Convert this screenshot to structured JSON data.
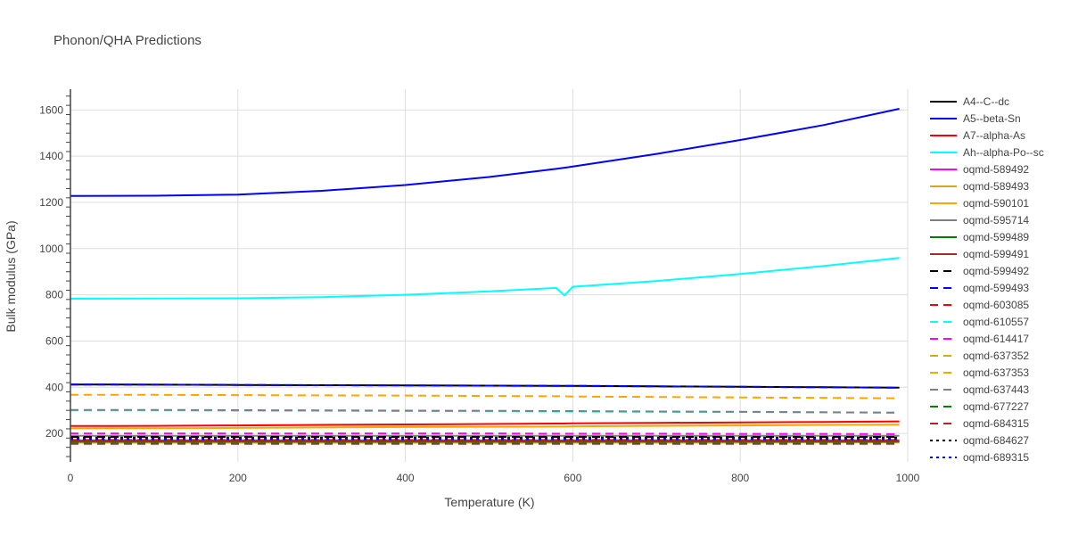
{
  "chart_data": {
    "type": "line",
    "title": "Phonon/QHA Predictions",
    "xlabel": "Temperature (K)",
    "ylabel": "Bulk modulus (GPa)",
    "xlim": [
      0,
      1000
    ],
    "ylim": [
      77,
      1690
    ],
    "xticks": [
      0,
      200,
      400,
      600,
      800,
      1000
    ],
    "yticks": [
      200,
      400,
      600,
      800,
      1000,
      1200,
      1400,
      1600
    ],
    "grid": true,
    "legend_position": "right",
    "x": [
      0,
      100,
      200,
      300,
      400,
      500,
      580,
      590,
      600,
      700,
      800,
      900,
      990
    ],
    "series": [
      {
        "name": "A4--C--dc",
        "color": "#000000",
        "dash": "solid",
        "values": [
          412,
          411,
          410,
          409,
          408,
          407,
          406,
          406,
          406,
          404,
          402,
          400,
          398
        ]
      },
      {
        "name": "A5--beta-Sn",
        "color": "#0000ff",
        "dash": "solid",
        "values": [
          1228,
          1229,
          1234,
          1250,
          1275,
          1310,
          1345,
          1350,
          1355,
          1410,
          1470,
          1535,
          1605
        ]
      },
      {
        "name": "A7--alpha-As",
        "color": "#ff0000",
        "dash": "solid",
        "values": [
          232,
          233,
          235,
          237,
          239,
          241,
          243,
          243,
          244,
          246,
          248,
          250,
          252
        ]
      },
      {
        "name": "Ah--alpha-Po--sc",
        "color": "#00ffff",
        "dash": "solid",
        "values": [
          783,
          784,
          785,
          790,
          800,
          815,
          830,
          798,
          835,
          860,
          890,
          925,
          960
        ]
      },
      {
        "name": "oqmd-589492",
        "color": "#ff00ff",
        "dash": "solid",
        "values": [
          170,
          170,
          170,
          170,
          170,
          170,
          170,
          170,
          170,
          170,
          170,
          170,
          170
        ]
      },
      {
        "name": "oqmd-589493",
        "color": "#daa520",
        "dash": "solid",
        "values": [
          160,
          160,
          160,
          160,
          160,
          160,
          160,
          160,
          160,
          160,
          160,
          161,
          161
        ]
      },
      {
        "name": "oqmd-590101",
        "color": "#ffa500",
        "dash": "solid",
        "values": [
          222,
          223,
          224,
          226,
          228,
          229,
          230,
          230,
          231,
          233,
          235,
          237,
          238
        ]
      },
      {
        "name": "oqmd-595714",
        "color": "#808080",
        "dash": "solid",
        "values": [
          190,
          190,
          190,
          190,
          190,
          190,
          190,
          190,
          190,
          190,
          190,
          190,
          190
        ]
      },
      {
        "name": "oqmd-599489",
        "color": "#008000",
        "dash": "solid",
        "values": [
          165,
          165,
          165,
          165,
          165,
          165,
          165,
          165,
          165,
          165,
          165,
          165,
          165
        ]
      },
      {
        "name": "oqmd-599491",
        "color": "#a52a2a",
        "dash": "solid",
        "values": [
          168,
          168,
          168,
          168,
          168,
          168,
          168,
          168,
          168,
          168,
          168,
          168,
          168
        ]
      },
      {
        "name": "oqmd-599492",
        "color": "#000000",
        "dash": "dash",
        "values": [
          185,
          185,
          185,
          185,
          185,
          185,
          185,
          185,
          185,
          185,
          185,
          185,
          185
        ]
      },
      {
        "name": "oqmd-599493",
        "color": "#0000ff",
        "dash": "dash",
        "values": [
          412,
          411,
          410,
          409,
          408,
          407,
          406,
          406,
          406,
          404,
          402,
          400,
          398
        ]
      },
      {
        "name": "oqmd-603085",
        "color": "#ff0000",
        "dash": "dash",
        "values": [
          172,
          172,
          172,
          172,
          172,
          172,
          172,
          172,
          172,
          172,
          172,
          172,
          172
        ]
      },
      {
        "name": "oqmd-610557",
        "color": "#00ffff",
        "dash": "dash",
        "values": [
          300,
          300,
          299,
          298,
          297,
          296,
          295,
          295,
          295,
          294,
          293,
          291,
          290
        ]
      },
      {
        "name": "oqmd-614417",
        "color": "#ff00ff",
        "dash": "dash",
        "values": [
          200,
          200,
          200,
          200,
          200,
          200,
          199,
          199,
          199,
          199,
          198,
          198,
          197
        ]
      },
      {
        "name": "oqmd-637352",
        "color": "#daa520",
        "dash": "dash",
        "values": [
          158,
          158,
          158,
          158,
          158,
          158,
          158,
          158,
          158,
          158,
          158,
          158,
          158
        ]
      },
      {
        "name": "oqmd-637353",
        "color": "#ffa500",
        "dash": "dash",
        "values": [
          367,
          367,
          366,
          365,
          364,
          362,
          361,
          361,
          360,
          358,
          356,
          354,
          352
        ]
      },
      {
        "name": "oqmd-637443",
        "color": "#808080",
        "dash": "dash",
        "values": [
          302,
          302,
          301,
          300,
          299,
          298,
          297,
          297,
          297,
          295,
          294,
          292,
          290
        ]
      },
      {
        "name": "oqmd-677227",
        "color": "#008000",
        "dash": "dash",
        "values": [
          163,
          163,
          163,
          163,
          163,
          163,
          163,
          163,
          163,
          163,
          163,
          163,
          163
        ]
      },
      {
        "name": "oqmd-684315",
        "color": "#a52a2a",
        "dash": "dash",
        "values": [
          155,
          155,
          155,
          155,
          155,
          155,
          155,
          155,
          155,
          155,
          155,
          155,
          155
        ]
      },
      {
        "name": "oqmd-684627",
        "color": "#000000",
        "dash": "dot",
        "values": [
          182,
          182,
          182,
          182,
          182,
          182,
          182,
          182,
          182,
          182,
          182,
          182,
          182
        ]
      },
      {
        "name": "oqmd-689315",
        "color": "#0000ff",
        "dash": "dot",
        "values": [
          175,
          175,
          175,
          175,
          175,
          175,
          175,
          175,
          175,
          175,
          175,
          175,
          175
        ]
      }
    ]
  }
}
